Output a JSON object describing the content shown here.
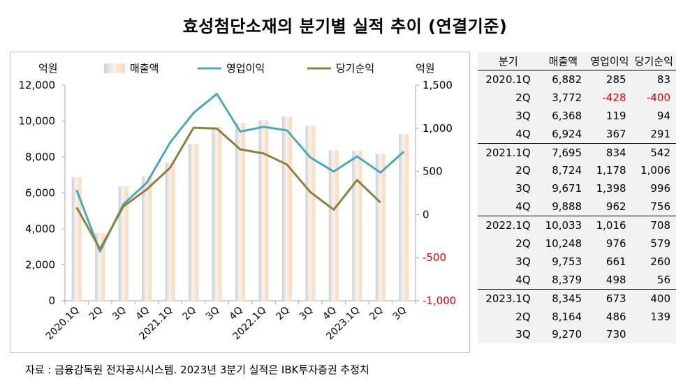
{
  "title": "효성첨단소재의 분기별 실적 추이 (연결기준)",
  "source": "자료 : 금융감독원 전자공시시스템. 2023년 3분기 실적은 IBK투자증권 추정치",
  "colors": {
    "bar_light": "#fbe3cf",
    "bar_grey": "#d0d0d0",
    "op_line": "#4aa8bd",
    "net_line": "#8c7f44",
    "negative": "#e00000"
  },
  "chart_data": {
    "type": "bar+line",
    "categories": [
      "2020.1Q",
      "2Q",
      "3Q",
      "4Q",
      "2021.1Q",
      "2Q",
      "3Q",
      "4Q",
      "2022.1Q",
      "2Q",
      "3Q",
      "4Q",
      "2023.1Q",
      "2Q",
      "3Q"
    ],
    "left_axis": {
      "unit": "억원",
      "ylim": [
        0,
        12000
      ],
      "ticks": [
        "0",
        "2,000",
        "4,000",
        "6,000",
        "8,000",
        "10,000",
        "12,000"
      ]
    },
    "right_axis": {
      "unit": "억원",
      "ylim": [
        -1000,
        1500
      ],
      "ticks": [
        "-1,000",
        "-500",
        "0",
        "500",
        "1,000",
        "1,500"
      ]
    },
    "series": [
      {
        "name": "매출액",
        "type": "bar",
        "axis": "left",
        "values": [
          6882,
          3772,
          6368,
          6924,
          7695,
          8724,
          9671,
          9888,
          10033,
          10248,
          9753,
          8379,
          8345,
          8164,
          9270
        ]
      },
      {
        "name": "영업이익",
        "type": "line",
        "axis": "right",
        "values": [
          285,
          -428,
          119,
          367,
          834,
          1178,
          1398,
          962,
          1016,
          976,
          661,
          498,
          673,
          486,
          730
        ]
      },
      {
        "name": "당기순익",
        "type": "line",
        "axis": "right",
        "values": [
          83,
          -400,
          94,
          291,
          542,
          1006,
          996,
          756,
          708,
          579,
          260,
          56,
          400,
          139,
          null
        ]
      }
    ],
    "grid": false,
    "legend": "top"
  },
  "table": {
    "headers": [
      "분기",
      "매출액",
      "영업이익",
      "당기순익"
    ],
    "rows": [
      {
        "q": "2020.1Q",
        "sales": "6,882",
        "op": "285",
        "net": "83",
        "group_start": true
      },
      {
        "q": "2Q",
        "sales": "3,772",
        "op": "-428",
        "net": "-400"
      },
      {
        "q": "3Q",
        "sales": "6,368",
        "op": "119",
        "net": "94"
      },
      {
        "q": "4Q",
        "sales": "6,924",
        "op": "367",
        "net": "291"
      },
      {
        "q": "2021.1Q",
        "sales": "7,695",
        "op": "834",
        "net": "542",
        "group_start": true
      },
      {
        "q": "2Q",
        "sales": "8,724",
        "op": "1,178",
        "net": "1,006"
      },
      {
        "q": "3Q",
        "sales": "9,671",
        "op": "1,398",
        "net": "996"
      },
      {
        "q": "4Q",
        "sales": "9,888",
        "op": "962",
        "net": "756"
      },
      {
        "q": "2022.1Q",
        "sales": "10,033",
        "op": "1,016",
        "net": "708",
        "group_start": true
      },
      {
        "q": "2Q",
        "sales": "10,248",
        "op": "976",
        "net": "579"
      },
      {
        "q": "3Q",
        "sales": "9,753",
        "op": "661",
        "net": "260"
      },
      {
        "q": "4Q",
        "sales": "8,379",
        "op": "498",
        "net": "56"
      },
      {
        "q": "2023.1Q",
        "sales": "8,345",
        "op": "673",
        "net": "400",
        "group_start": true
      },
      {
        "q": "2Q",
        "sales": "8,164",
        "op": "486",
        "net": "139"
      },
      {
        "q": "3Q",
        "sales": "9,270",
        "op": "730",
        "net": ""
      }
    ]
  }
}
